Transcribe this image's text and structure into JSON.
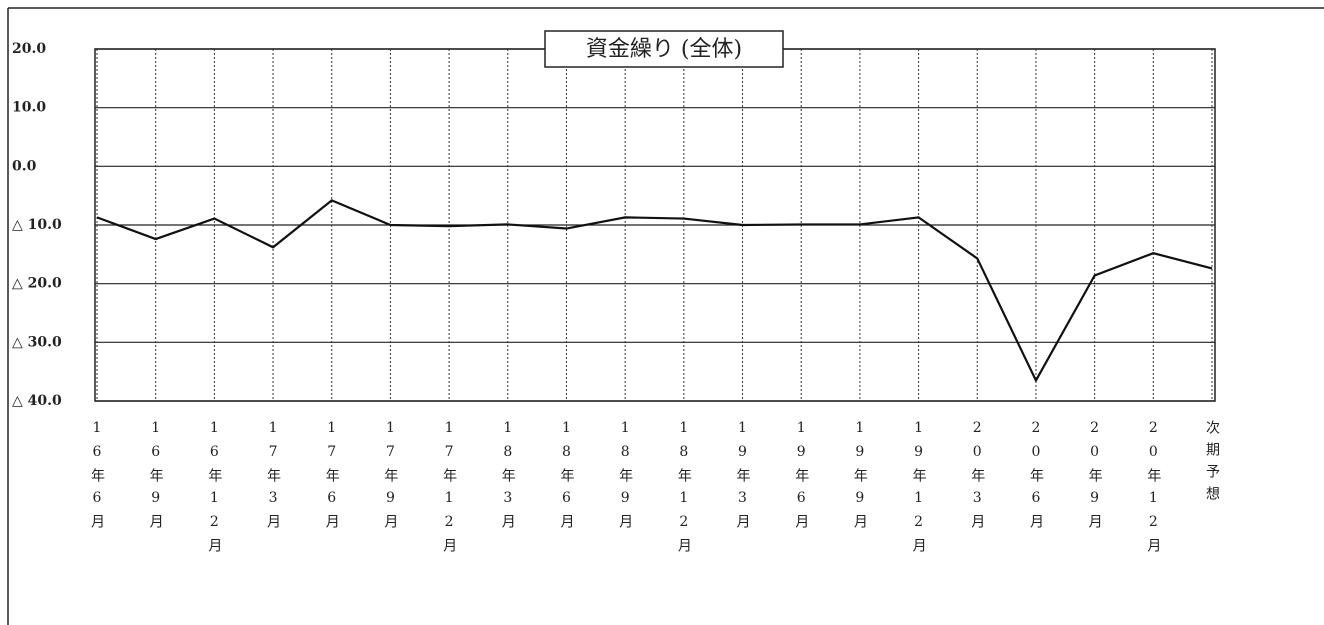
{
  "chart_data": {
    "type": "line",
    "title": "資金繰り (全体)",
    "categories": [
      "16年6月",
      "16年9月",
      "16年12月",
      "17年3月",
      "17年6月",
      "17年9月",
      "17年12月",
      "18年3月",
      "18年6月",
      "18年9月",
      "18年12月",
      "19年3月",
      "19年6月",
      "19年9月",
      "19年12月",
      "20年3月",
      "20年6月",
      "20年9月",
      "20年12月",
      "次期予想"
    ],
    "values": [
      -8.7,
      -12.4,
      -8.9,
      -13.8,
      -5.8,
      -10.0,
      -10.2,
      -9.9,
      -10.6,
      -8.7,
      -8.9,
      -10.0,
      -9.9,
      -9.9,
      -8.7,
      -15.7,
      -36.5,
      -18.6,
      -14.8,
      -17.4
    ],
    "color": "#111111",
    "ylim": [
      -40,
      20
    ],
    "yticks": [
      {
        "value": -40,
        "label": "△ 40.0"
      },
      {
        "value": -30,
        "label": "△ 30.0"
      },
      {
        "value": -20,
        "label": "△ 20.0"
      },
      {
        "value": -10,
        "label": "△ 10.0"
      },
      {
        "value": 0,
        "label": "0.0"
      },
      {
        "value": 10,
        "label": "10.0"
      },
      {
        "value": 20,
        "label": "20.0"
      }
    ],
    "grid": true
  }
}
